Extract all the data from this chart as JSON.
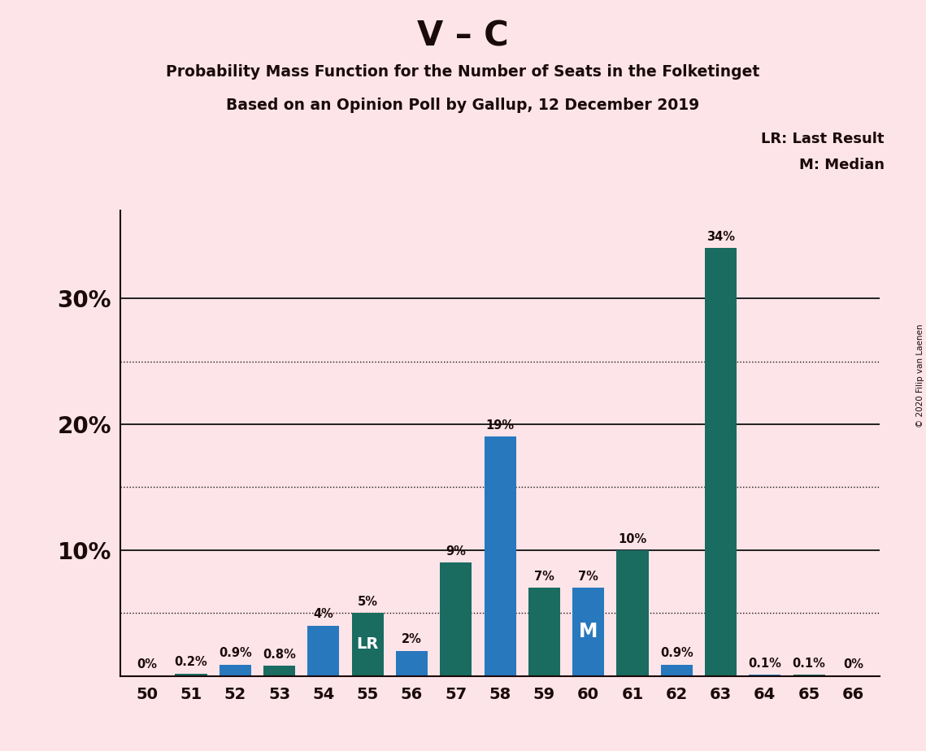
{
  "title1": "V – C",
  "title2": "Probability Mass Function for the Number of Seats in the Folketinget",
  "title3": "Based on an Opinion Poll by Gallup, 12 December 2019",
  "copyright": "© 2020 Filip van Laenen",
  "categories": [
    50,
    51,
    52,
    53,
    54,
    55,
    56,
    57,
    58,
    59,
    60,
    61,
    62,
    63,
    64,
    65,
    66
  ],
  "values": [
    0.05,
    0.2,
    0.9,
    0.8,
    4.0,
    5.0,
    2.0,
    9.0,
    19.0,
    7.0,
    7.0,
    10.0,
    0.9,
    34.0,
    0.1,
    0.1,
    0.05
  ],
  "labels": [
    "0%",
    "0.2%",
    "0.9%",
    "0.8%",
    "4%",
    "5%",
    "2%",
    "9%",
    "19%",
    "7%",
    "7%",
    "10%",
    "0.9%",
    "34%",
    "0.1%",
    "0.1%",
    "0%"
  ],
  "lr_seat": 55,
  "median_seat": 60,
  "background_color": "#fce4e8",
  "bar_color_blue": "#2878be",
  "bar_color_teal": "#1a6b60",
  "ylim": [
    0,
    37
  ],
  "solid_yticks": [
    10,
    20,
    30
  ],
  "dotted_yticks": [
    5,
    15,
    25
  ],
  "legend_lr": "LR: Last Result",
  "legend_m": "M: Median"
}
